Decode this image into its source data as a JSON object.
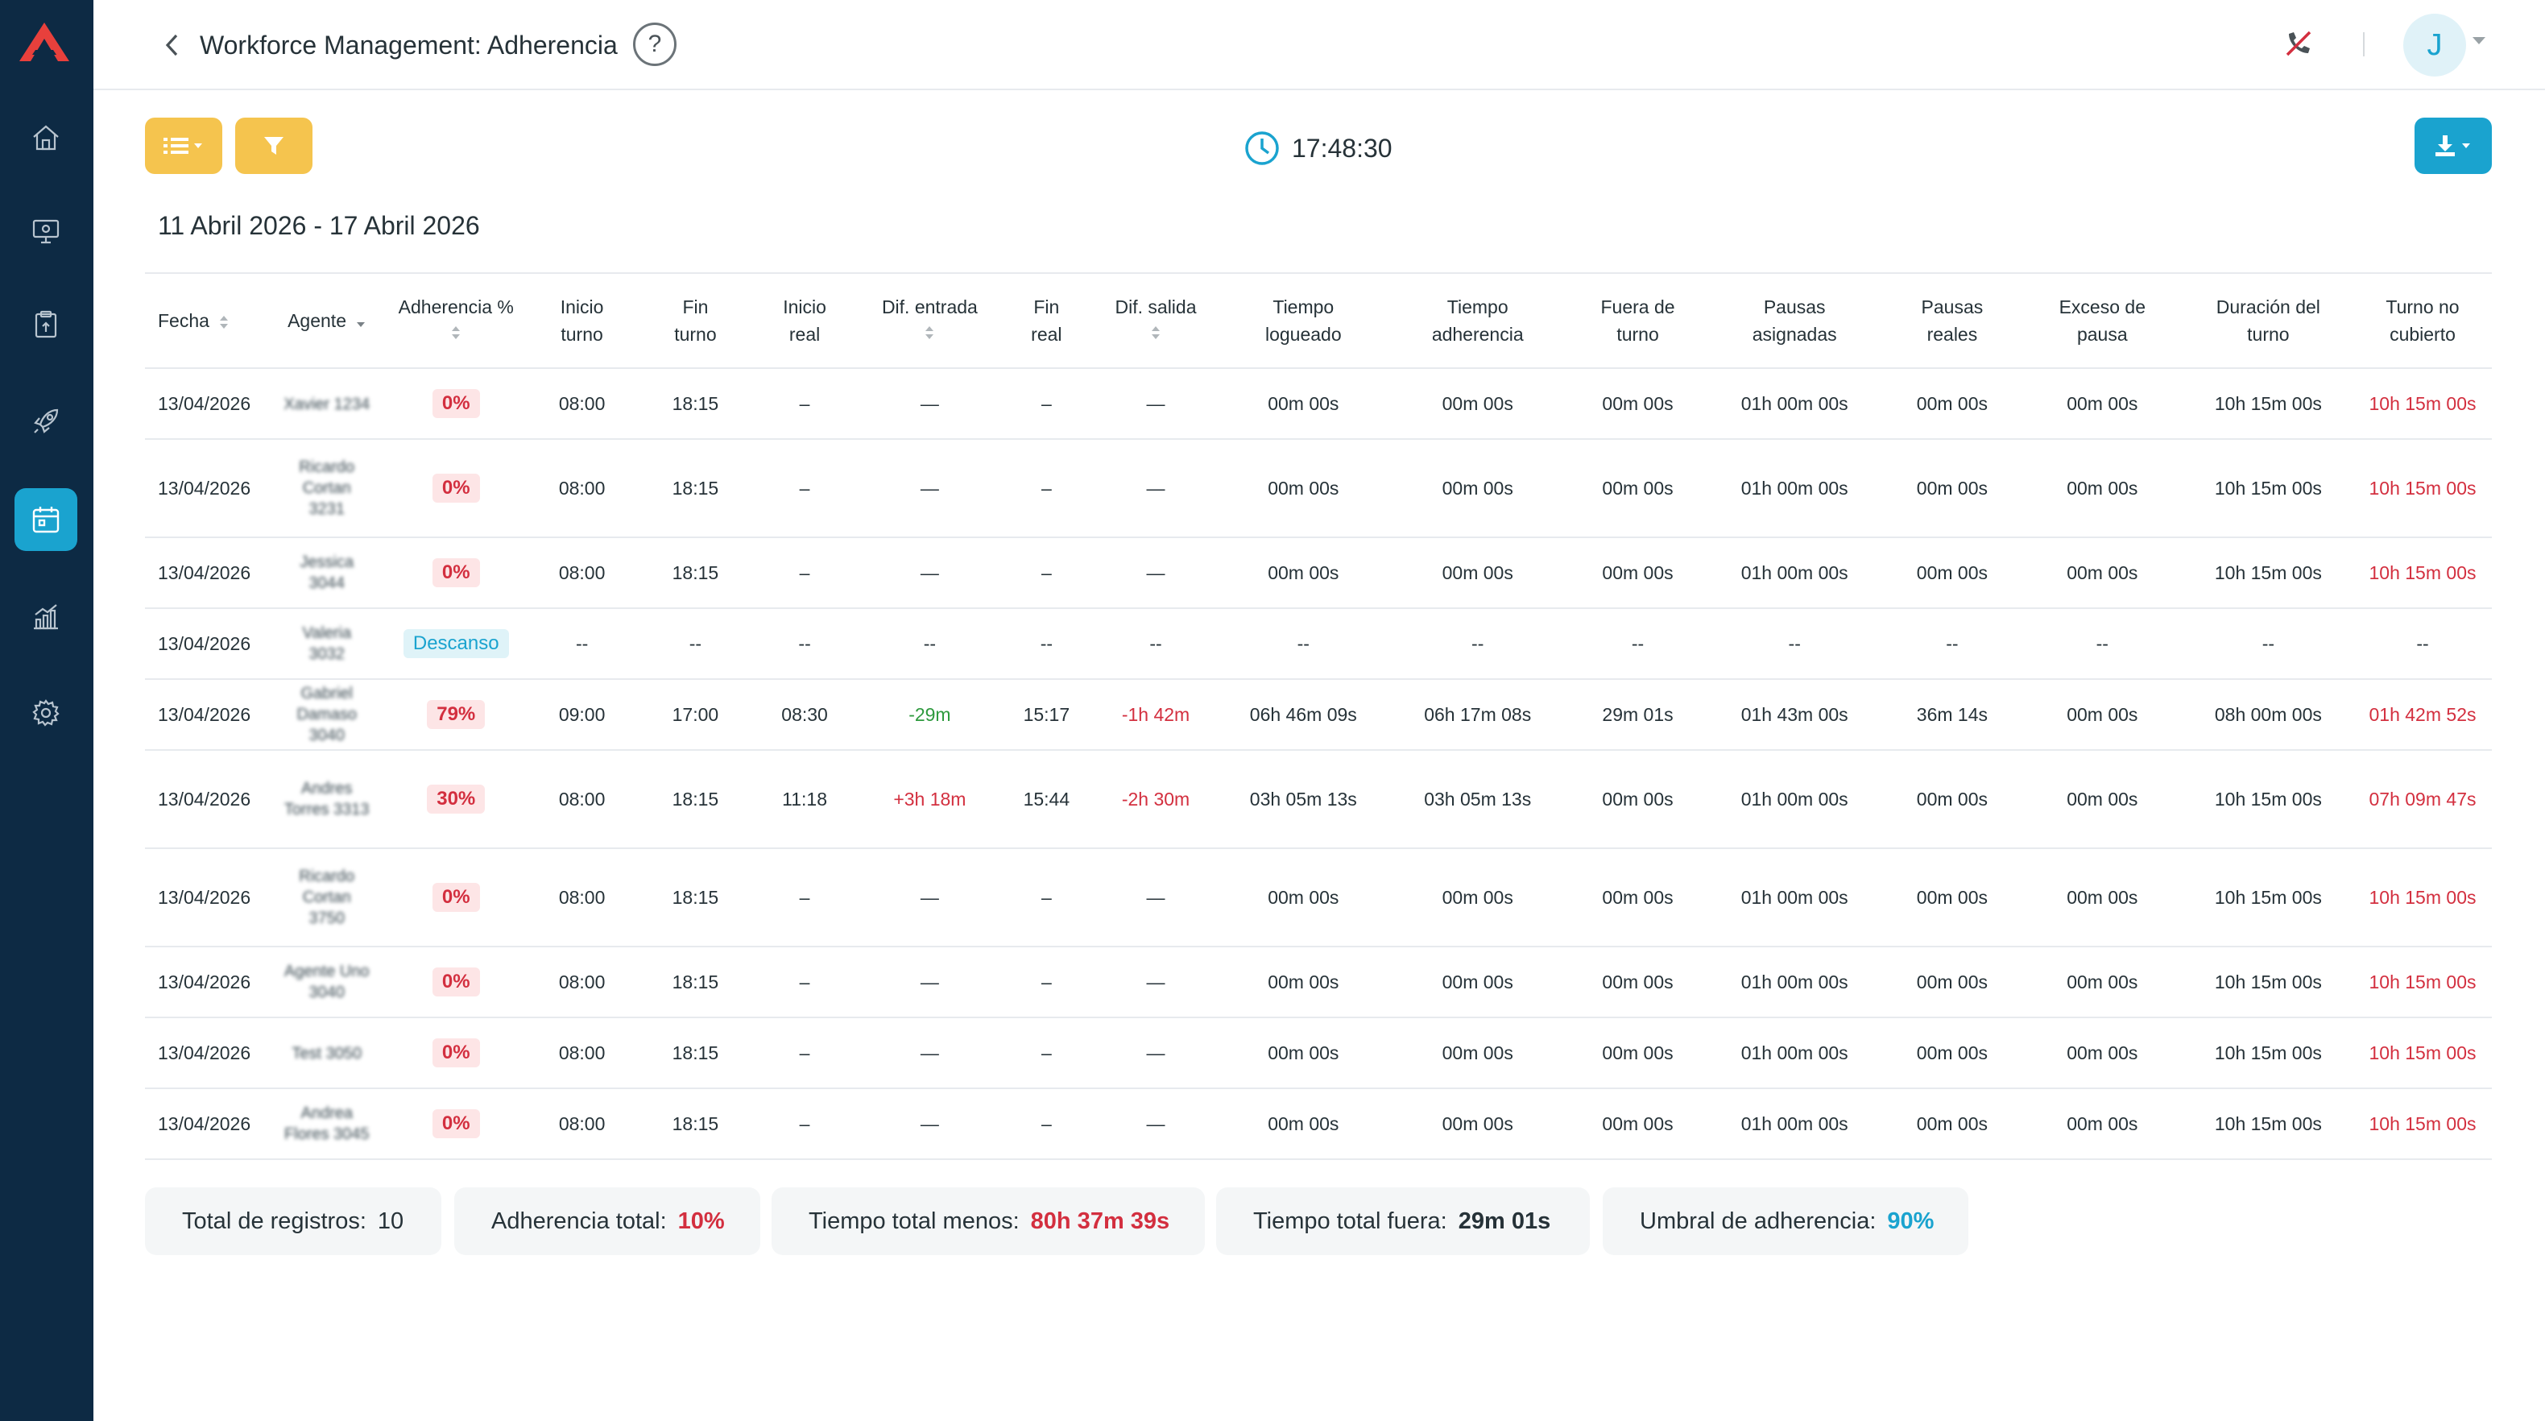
{
  "header": {
    "title": "Workforce Management: Adherencia",
    "help": "?",
    "avatar_initial": "J"
  },
  "toolbar": {
    "clock": "17:48:30"
  },
  "date_range": "11 Abril 2026 - 17 Abril 2026",
  "columns": [
    "Fecha",
    "Agente",
    "Adherencia %",
    "Inicio turno",
    "Fin turno",
    "Inicio real",
    "Dif. entrada",
    "Fin real",
    "Dif. salida",
    "Tiempo logueado",
    "Tiempo adherencia",
    "Fuera de turno",
    "Pausas asignadas",
    "Pausas reales",
    "Exceso de pausa",
    "Duración del turno",
    "Turno no cubierto"
  ],
  "rows": [
    {
      "fecha": "13/04/2026",
      "agente": "Xavier 1234",
      "adherencia": "0%",
      "inicio_turno": "08:00",
      "fin_turno": "18:15",
      "inicio_real": "–",
      "dif_entrada": "—",
      "fin_real": "–",
      "dif_salida": "—",
      "tiempo_logueado": "00m 00s",
      "tiempo_adherencia": "00m 00s",
      "fuera_turno": "00m 00s",
      "pausas_asignadas": "01h 00m 00s",
      "pausas_reales": "00m 00s",
      "exceso_pausa": "00m 00s",
      "duracion_turno": "10h 15m 00s",
      "turno_no_cubierto": "10h 15m 00s"
    },
    {
      "fecha": "13/04/2026",
      "agente": "Ricardo Cortan 3231",
      "adherencia": "0%",
      "inicio_turno": "08:00",
      "fin_turno": "18:15",
      "inicio_real": "–",
      "dif_entrada": "—",
      "fin_real": "–",
      "dif_salida": "—",
      "tiempo_logueado": "00m 00s",
      "tiempo_adherencia": "00m 00s",
      "fuera_turno": "00m 00s",
      "pausas_asignadas": "01h 00m 00s",
      "pausas_reales": "00m 00s",
      "exceso_pausa": "00m 00s",
      "duracion_turno": "10h 15m 00s",
      "turno_no_cubierto": "10h 15m 00s"
    },
    {
      "fecha": "13/04/2026",
      "agente": "Jessica 3044",
      "adherencia": "0%",
      "inicio_turno": "08:00",
      "fin_turno": "18:15",
      "inicio_real": "–",
      "dif_entrada": "—",
      "fin_real": "–",
      "dif_salida": "—",
      "tiempo_logueado": "00m 00s",
      "tiempo_adherencia": "00m 00s",
      "fuera_turno": "00m 00s",
      "pausas_asignadas": "01h 00m 00s",
      "pausas_reales": "00m 00s",
      "exceso_pausa": "00m 00s",
      "duracion_turno": "10h 15m 00s",
      "turno_no_cubierto": "10h 15m 00s"
    },
    {
      "fecha": "13/04/2026",
      "agente": "Valeria 3032",
      "adherencia": "Descanso",
      "inicio_turno": "--",
      "fin_turno": "--",
      "inicio_real": "--",
      "dif_entrada": "--",
      "fin_real": "--",
      "dif_salida": "--",
      "tiempo_logueado": "--",
      "tiempo_adherencia": "--",
      "fuera_turno": "--",
      "pausas_asignadas": "--",
      "pausas_reales": "--",
      "exceso_pausa": "--",
      "duracion_turno": "--",
      "turno_no_cubierto": "--"
    },
    {
      "fecha": "13/04/2026",
      "agente": "Gabriel Damaso 3040",
      "adherencia": "79%",
      "inicio_turno": "09:00",
      "fin_turno": "17:00",
      "inicio_real": "08:30",
      "dif_entrada": "-29m",
      "fin_real": "15:17",
      "dif_salida": "-1h 42m",
      "tiempo_logueado": "06h 46m 09s",
      "tiempo_adherencia": "06h 17m 08s",
      "fuera_turno": "29m 01s",
      "pausas_asignadas": "01h 43m 00s",
      "pausas_reales": "36m 14s",
      "exceso_pausa": "00m 00s",
      "duracion_turno": "08h 00m 00s",
      "turno_no_cubierto": "01h 42m 52s"
    },
    {
      "fecha": "13/04/2026",
      "agente": "Andres Torres 3313",
      "adherencia": "30%",
      "inicio_turno": "08:00",
      "fin_turno": "18:15",
      "inicio_real": "11:18",
      "dif_entrada": "+3h 18m",
      "fin_real": "15:44",
      "dif_salida": "-2h 30m",
      "tiempo_logueado": "03h 05m 13s",
      "tiempo_adherencia": "03h 05m 13s",
      "fuera_turno": "00m 00s",
      "pausas_asignadas": "01h 00m 00s",
      "pausas_reales": "00m 00s",
      "exceso_pausa": "00m 00s",
      "duracion_turno": "10h 15m 00s",
      "turno_no_cubierto": "07h 09m 47s"
    },
    {
      "fecha": "13/04/2026",
      "agente": "Ricardo Cortan 3750",
      "adherencia": "0%",
      "inicio_turno": "08:00",
      "fin_turno": "18:15",
      "inicio_real": "–",
      "dif_entrada": "—",
      "fin_real": "–",
      "dif_salida": "—",
      "tiempo_logueado": "00m 00s",
      "tiempo_adherencia": "00m 00s",
      "fuera_turno": "00m 00s",
      "pausas_asignadas": "01h 00m 00s",
      "pausas_reales": "00m 00s",
      "exceso_pausa": "00m 00s",
      "duracion_turno": "10h 15m 00s",
      "turno_no_cubierto": "10h 15m 00s"
    },
    {
      "fecha": "13/04/2026",
      "agente": "Agente Uno 3040",
      "adherencia": "0%",
      "inicio_turno": "08:00",
      "fin_turno": "18:15",
      "inicio_real": "–",
      "dif_entrada": "—",
      "fin_real": "–",
      "dif_salida": "—",
      "tiempo_logueado": "00m 00s",
      "tiempo_adherencia": "00m 00s",
      "fuera_turno": "00m 00s",
      "pausas_asignadas": "01h 00m 00s",
      "pausas_reales": "00m 00s",
      "exceso_pausa": "00m 00s",
      "duracion_turno": "10h 15m 00s",
      "turno_no_cubierto": "10h 15m 00s"
    },
    {
      "fecha": "13/04/2026",
      "agente": "Test 3050",
      "adherencia": "0%",
      "inicio_turno": "08:00",
      "fin_turno": "18:15",
      "inicio_real": "–",
      "dif_entrada": "—",
      "fin_real": "–",
      "dif_salida": "—",
      "tiempo_logueado": "00m 00s",
      "tiempo_adherencia": "00m 00s",
      "fuera_turno": "00m 00s",
      "pausas_asignadas": "01h 00m 00s",
      "pausas_reales": "00m 00s",
      "exceso_pausa": "00m 00s",
      "duracion_turno": "10h 15m 00s",
      "turno_no_cubierto": "10h 15m 00s"
    },
    {
      "fecha": "13/04/2026",
      "agente": "Andrea Flores 3045",
      "adherencia": "0%",
      "inicio_turno": "08:00",
      "fin_turno": "18:15",
      "inicio_real": "–",
      "dif_entrada": "—",
      "fin_real": "–",
      "dif_salida": "—",
      "tiempo_logueado": "00m 00s",
      "tiempo_adherencia": "00m 00s",
      "fuera_turno": "00m 00s",
      "pausas_asignadas": "01h 00m 00s",
      "pausas_reales": "00m 00s",
      "exceso_pausa": "00m 00s",
      "duracion_turno": "10h 15m 00s",
      "turno_no_cubierto": "10h 15m 00s"
    }
  ],
  "summary": {
    "total_label": "Total de registros:",
    "total_value": "10",
    "adherencia_label": "Adherencia total:",
    "adherencia_value": "10%",
    "menos_label": "Tiempo total menos:",
    "menos_value": "80h 37m 39s",
    "fuera_label": "Tiempo total fuera:",
    "fuera_value": "29m 01s",
    "umbral_label": "Umbral de adherencia:",
    "umbral_value": "90%"
  },
  "colors": {
    "sidebar": "#0d2a44",
    "accent": "#1aa3cf",
    "warning": "#f5c44e",
    "danger": "#d32f3f",
    "success": "#2e9a3e"
  },
  "icons": {
    "nav": [
      "home-icon",
      "monitor-icon",
      "clipboard-icon",
      "rocket-icon",
      "calendar-icon",
      "chart-icon",
      "gear-icon"
    ],
    "toolbar": [
      "list-icon",
      "filter-icon",
      "clock-icon",
      "download-icon"
    ]
  }
}
